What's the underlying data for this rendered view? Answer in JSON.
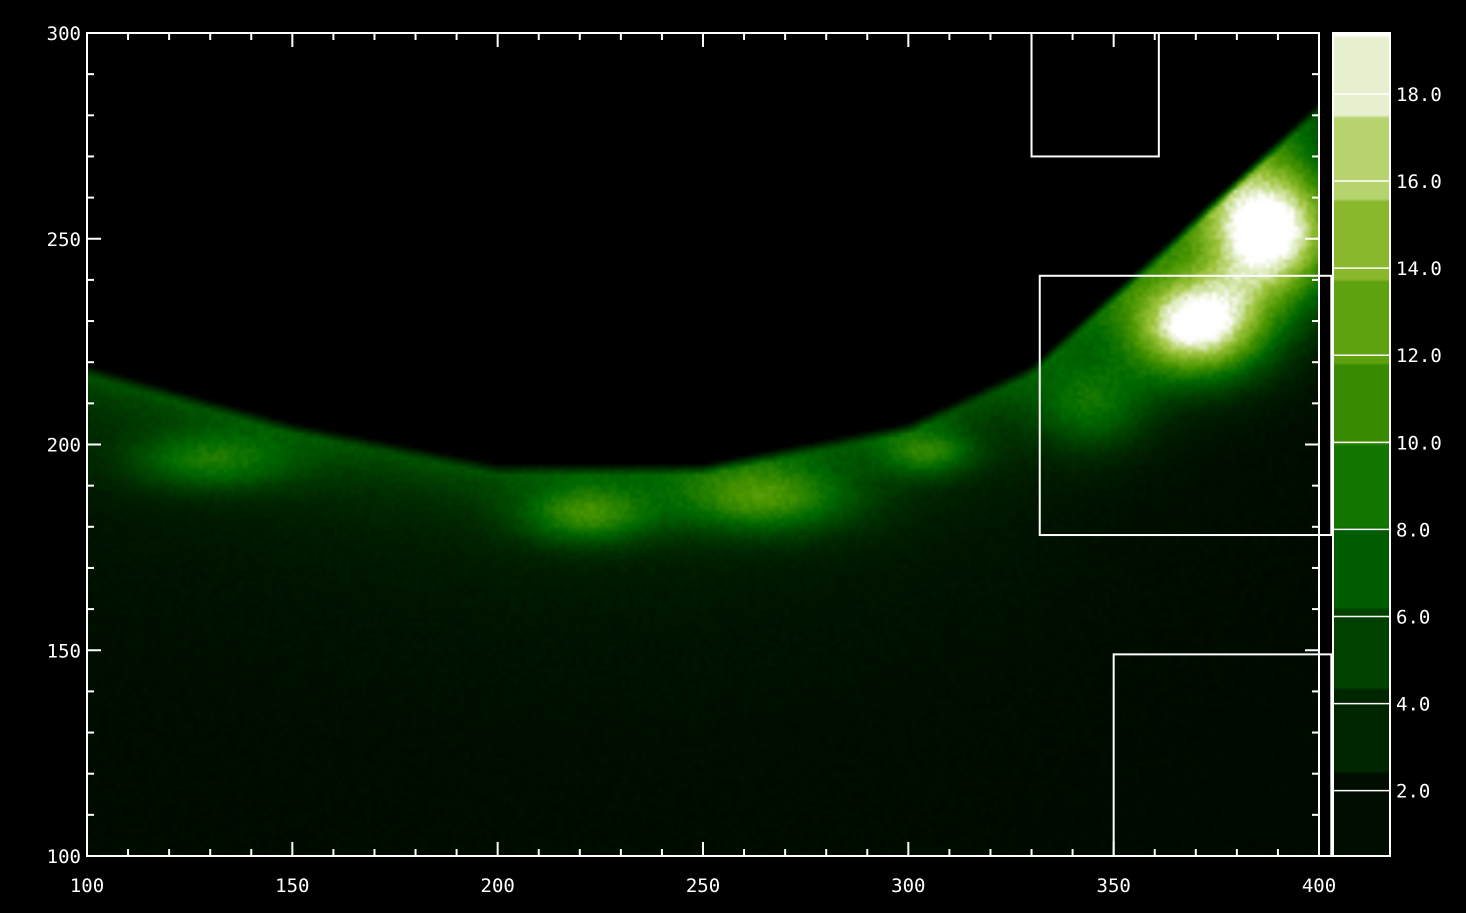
{
  "chart_data": {
    "type": "heatmap",
    "title": "",
    "xlabel": "",
    "ylabel": "",
    "xlim": [
      100,
      400
    ],
    "ylim": [
      100,
      300
    ],
    "x_ticks": [
      100,
      150,
      200,
      250,
      300,
      350,
      400
    ],
    "y_ticks": [
      100,
      150,
      200,
      250,
      300
    ],
    "x_tick_labels": [
      "100",
      "150",
      "200",
      "250",
      "300",
      "350",
      "400"
    ],
    "y_tick_labels": [
      "100",
      "150",
      "200",
      "250",
      "300"
    ],
    "x_minor_step": 10,
    "y_minor_step": 10,
    "colormap": [
      "#000000",
      "#003300",
      "#006a00",
      "#4a9600",
      "#9ec43c",
      "#ffffff"
    ],
    "colorbar": {
      "range": [
        0.5,
        19.4
      ],
      "ticks": [
        2.0,
        4.0,
        6.0,
        8.0,
        10.0,
        12.0,
        14.0,
        16.0,
        18.0
      ],
      "tick_labels": [
        "2.0",
        "4.0",
        "6.0",
        "8.0",
        "10.0",
        "12.0",
        "14.0",
        "16.0",
        "18.0"
      ]
    },
    "field": {
      "description_free_parameters": true,
      "limb_curve_y_at": [
        [
          100,
          218
        ],
        [
          150,
          204
        ],
        [
          200,
          194
        ],
        [
          250,
          194
        ],
        [
          300,
          204
        ],
        [
          330,
          218
        ],
        [
          360,
          245
        ],
        [
          400,
          282
        ]
      ],
      "bright_blobs": [
        {
          "x": 130,
          "y": 196,
          "amp": 6.0,
          "sx": 14,
          "sy": 5
        },
        {
          "x": 222,
          "y": 183,
          "amp": 7.5,
          "sx": 11,
          "sy": 5
        },
        {
          "x": 265,
          "y": 187,
          "amp": 8.0,
          "sx": 15,
          "sy": 6
        },
        {
          "x": 305,
          "y": 198,
          "amp": 6.0,
          "sx": 8,
          "sy": 4
        },
        {
          "x": 345,
          "y": 210,
          "amp": 6.0,
          "sx": 10,
          "sy": 8
        },
        {
          "x": 370,
          "y": 229,
          "amp": 18.0,
          "sx": 12,
          "sy": 9
        },
        {
          "x": 388,
          "y": 252,
          "amp": 19.0,
          "sx": 12,
          "sy": 12
        }
      ]
    },
    "annotations": [
      {
        "type": "box",
        "x0": 330,
        "x1": 361,
        "y0": 270,
        "y1": 300
      },
      {
        "type": "box",
        "x0": 332,
        "x1": 403,
        "y0": 178,
        "y1": 241
      },
      {
        "type": "box",
        "x0": 350,
        "x1": 403,
        "y0": 100,
        "y1": 149
      }
    ]
  }
}
